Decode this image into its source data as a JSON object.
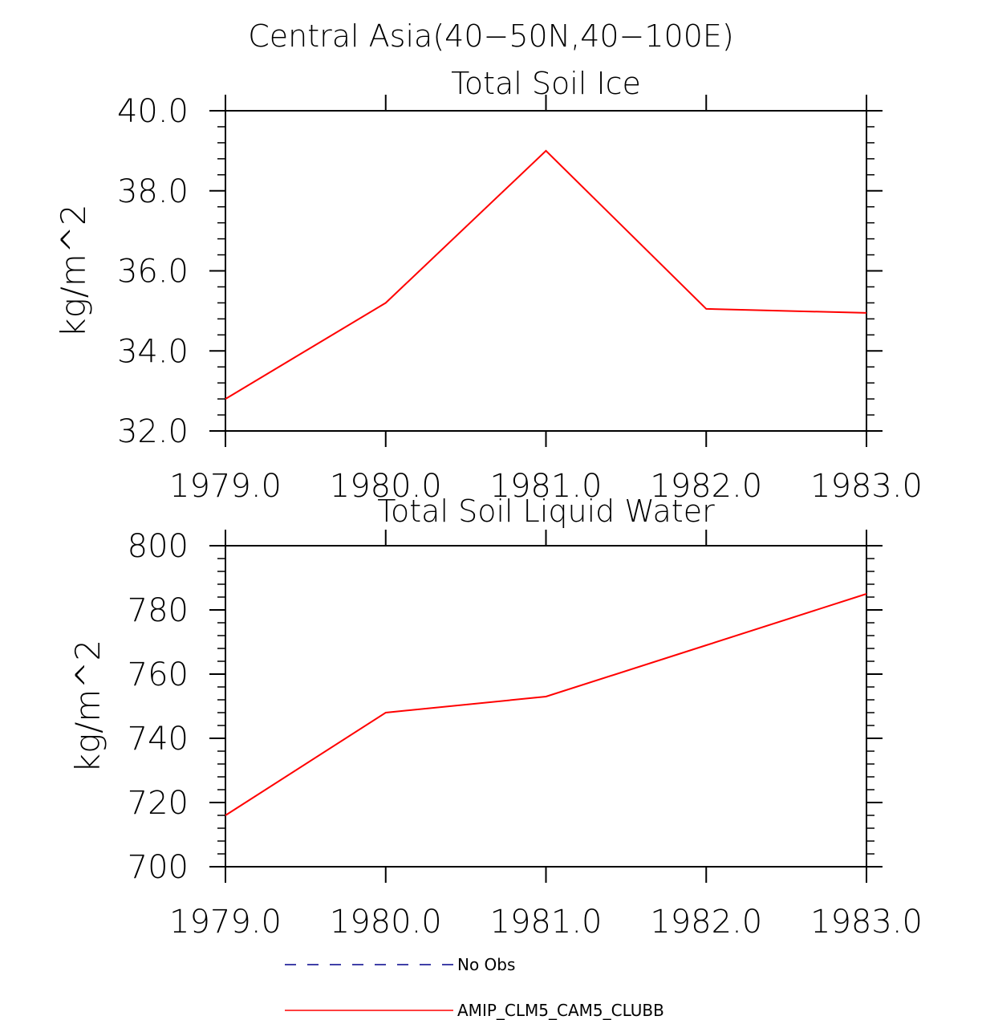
{
  "figure": {
    "title": "Central Asia(40−50N,40−100E)"
  },
  "colors": {
    "model": "#ff0000",
    "obs": "#00008b",
    "axis": "#000000"
  },
  "chart_data": [
    {
      "type": "line",
      "title": "Total Soil Ice",
      "xlabel": "",
      "ylabel": "kg/m^2",
      "xlim": [
        1979,
        1983
      ],
      "ylim": [
        32,
        40
      ],
      "x_ticks": [
        1979,
        1980,
        1981,
        1982,
        1983
      ],
      "x_tick_labels": [
        "1979.0",
        "1980.0",
        "1981.0",
        "1982.0",
        "1983.0"
      ],
      "y_ticks": [
        32,
        34,
        36,
        38,
        40
      ],
      "y_tick_labels": [
        "32.0",
        "34.0",
        "36.0",
        "38.0",
        "40.0"
      ],
      "y_minor_step": 0.4,
      "x_minor_step": 0,
      "series": [
        {
          "name": "AMIP_CLM5_CAM5_CLUBB",
          "x": [
            1979,
            1980,
            1981,
            1982,
            1983
          ],
          "y": [
            32.8,
            35.2,
            39.0,
            35.05,
            34.95
          ]
        }
      ]
    },
    {
      "type": "line",
      "title": "Total Soil Liquid Water",
      "xlabel": "",
      "ylabel": "kg/m^2",
      "xlim": [
        1979,
        1983
      ],
      "ylim": [
        700,
        800
      ],
      "x_ticks": [
        1979,
        1980,
        1981,
        1982,
        1983
      ],
      "x_tick_labels": [
        "1979.0",
        "1980.0",
        "1981.0",
        "1982.0",
        "1983.0"
      ],
      "y_ticks": [
        700,
        720,
        740,
        760,
        780,
        800
      ],
      "y_tick_labels": [
        "700",
        "720",
        "740",
        "760",
        "780",
        "800"
      ],
      "y_minor_step": 4,
      "x_minor_step": 0,
      "series": [
        {
          "name": "AMIP_CLM5_CAM5_CLUBB",
          "x": [
            1979,
            1980,
            1981,
            1982,
            1983
          ],
          "y": [
            716,
            748,
            753,
            769,
            785
          ]
        }
      ]
    }
  ],
  "legend": {
    "placement": "bottom",
    "entries": [
      {
        "label": "No Obs",
        "style": "dashed"
      },
      {
        "label": "AMIP_CLM5_CAM5_CLUBB",
        "style": "solid"
      }
    ]
  }
}
